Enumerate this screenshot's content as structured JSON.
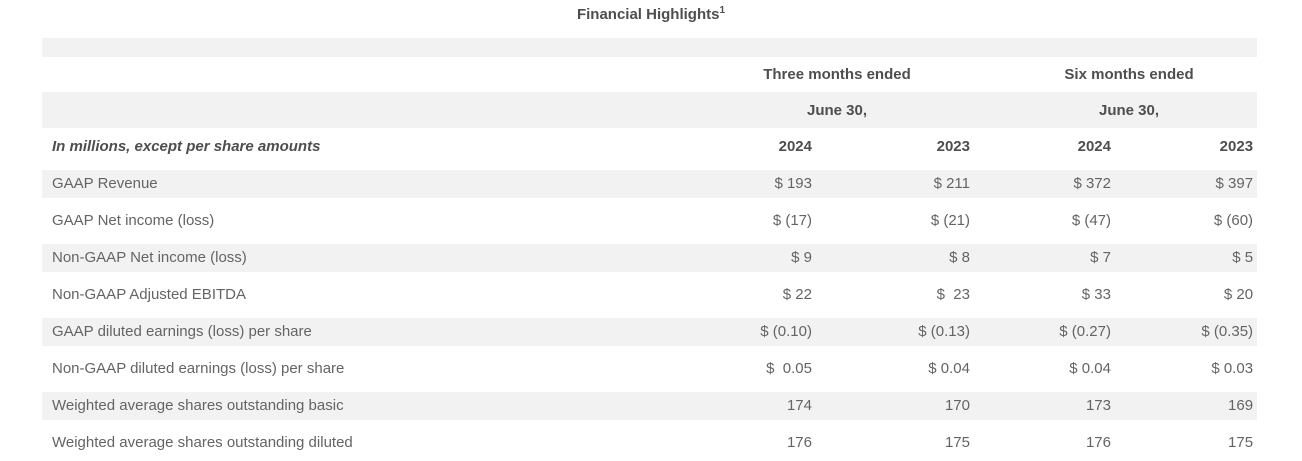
{
  "title": {
    "text": "Financial Highlights",
    "superscript": "1"
  },
  "table": {
    "group_headers": [
      "Three months ended",
      "Six months ended"
    ],
    "date_header": "June 30,",
    "row_label_header": "In millions, except per share amounts",
    "year_headers": [
      "2024",
      "2023",
      "2024",
      "2023"
    ],
    "rows": [
      {
        "label": "GAAP Revenue",
        "values": [
          "$ 193",
          "$ 211",
          "$ 372",
          "$ 397"
        ]
      },
      {
        "label": "GAAP Net income (loss)",
        "values": [
          "$ (17)",
          "$ (21)",
          "$ (47)",
          "$ (60)"
        ]
      },
      {
        "label": "Non-GAAP Net income (loss)",
        "values": [
          "$ 9",
          "$ 8",
          "$ 7",
          "$ 5"
        ]
      },
      {
        "label": "Non-GAAP Adjusted EBITDA",
        "values": [
          "$ 22",
          "$  23",
          "$ 33",
          "$ 20"
        ]
      },
      {
        "label": "GAAP diluted earnings (loss) per share",
        "values": [
          "$ (0.10)",
          "$ (0.13)",
          "$ (0.27)",
          "$ (0.35)"
        ]
      },
      {
        "label": "Non-GAAP diluted earnings (loss) per share",
        "values": [
          "$  0.05",
          "$ 0.04",
          "$ 0.04",
          "$ 0.03"
        ]
      },
      {
        "label": "Weighted average shares outstanding basic",
        "values": [
          "174",
          "170",
          "173",
          "169"
        ]
      },
      {
        "label": "Weighted average shares outstanding diluted",
        "values": [
          "176",
          "175",
          "176",
          "175"
        ]
      }
    ]
  },
  "colors": {
    "row_stripe": "#f2f2f2",
    "body_text": "#646464",
    "heading_text": "#4e4e4e",
    "background": "#ffffff"
  }
}
